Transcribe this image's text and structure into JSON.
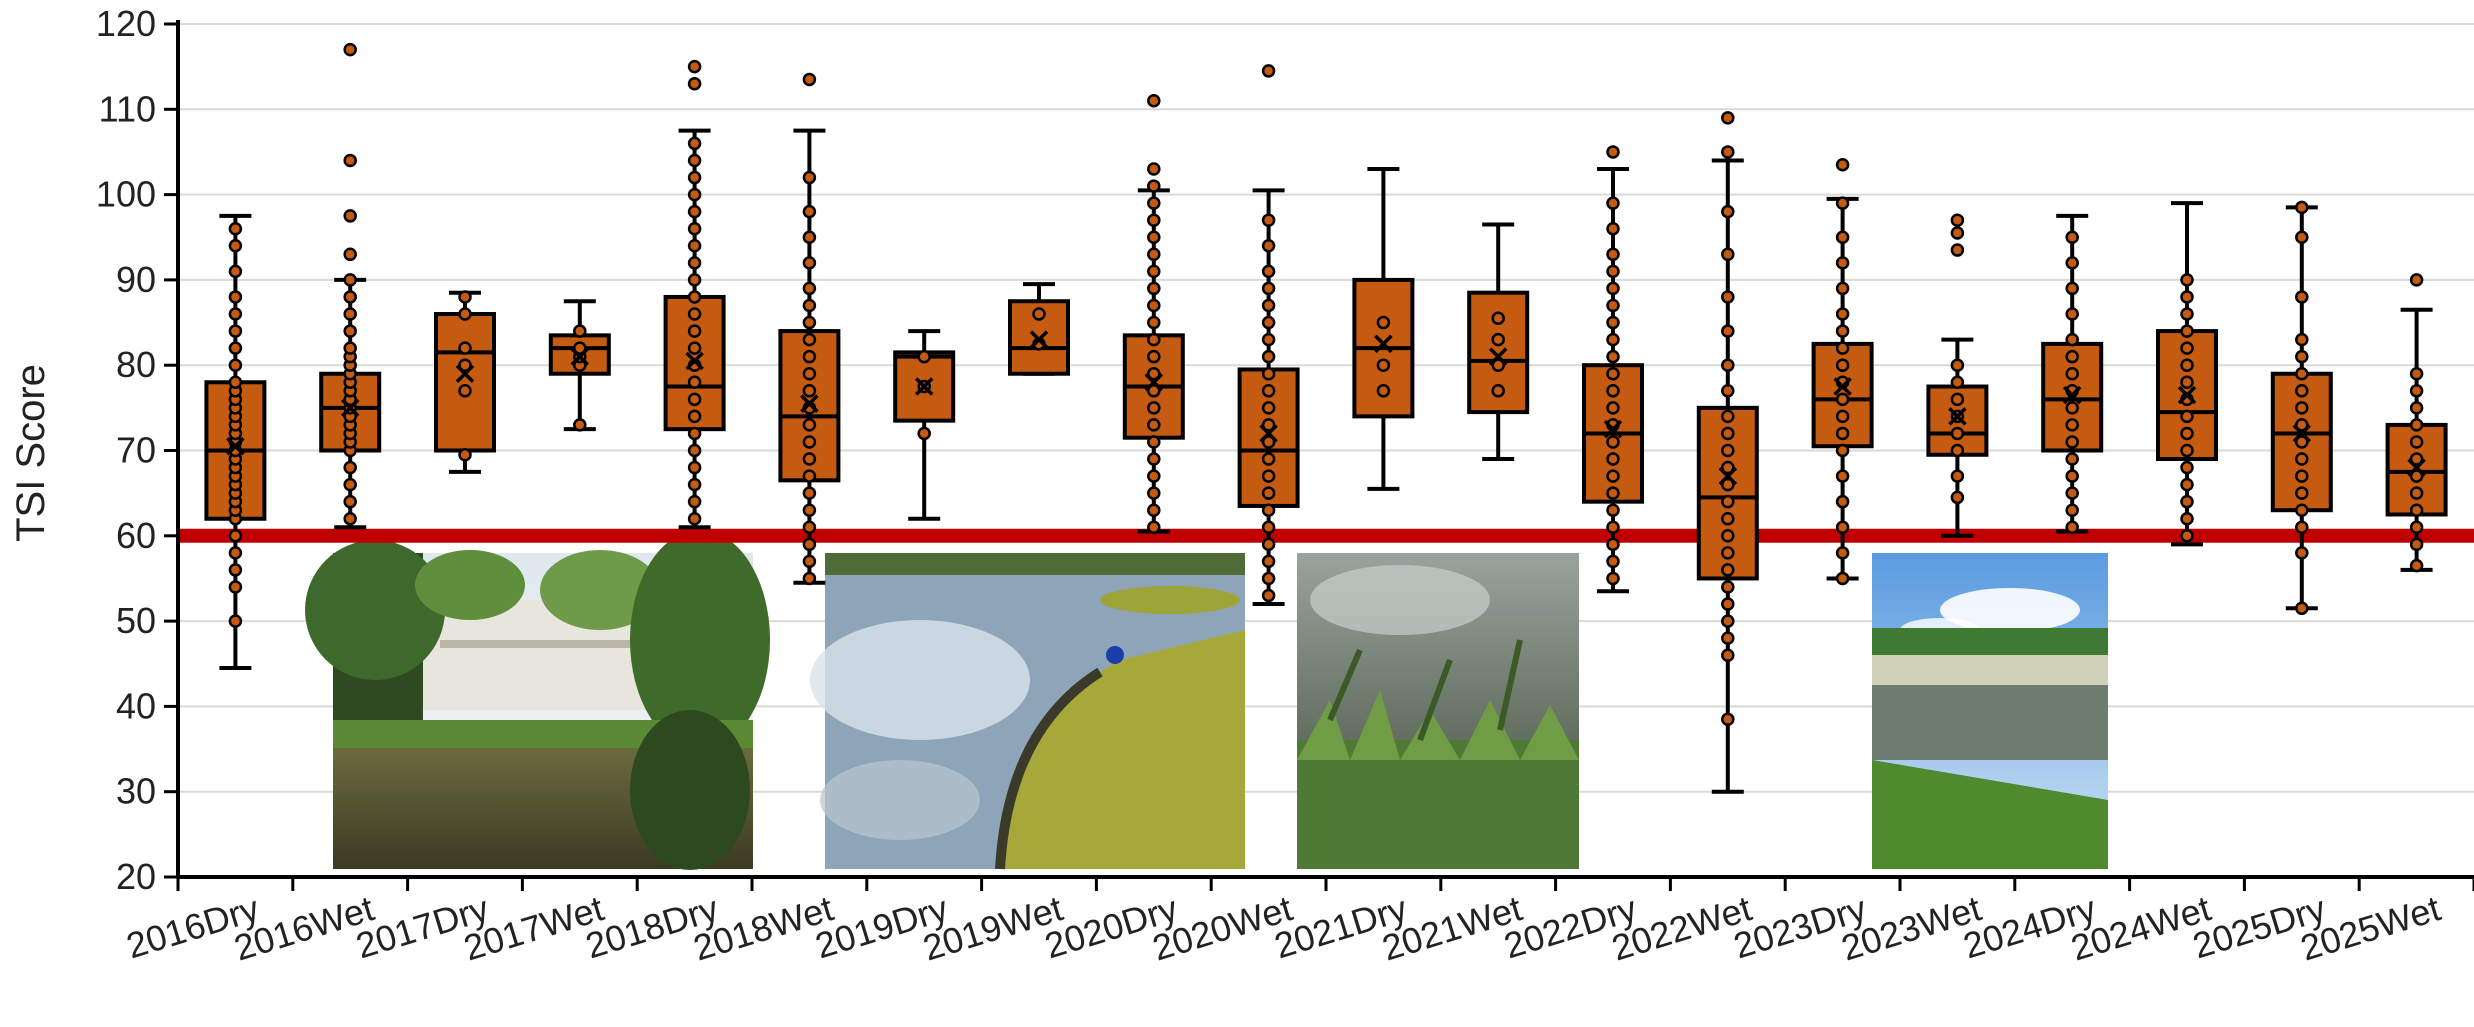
{
  "chart_data": {
    "type": "box",
    "ylabel": "TSI Score",
    "xlabel": "",
    "ylim": [
      20,
      120
    ],
    "yticks": [
      20,
      30,
      40,
      50,
      60,
      70,
      80,
      90,
      100,
      110,
      120
    ],
    "grid": "horizontal",
    "threshold": 60,
    "colors": {
      "box": "#c55a11",
      "outline": "#000000",
      "threshold": "#c00000",
      "grid": "#d9d9d9"
    },
    "categories": [
      "2016Dry",
      "2016Wet",
      "2017Dry",
      "2017Wet",
      "2018Dry",
      "2018Wet",
      "2019Dry",
      "2019Wet",
      "2020Dry",
      "2020Wet",
      "2021Dry",
      "2021Wet",
      "2022Dry",
      "2022Wet",
      "2023Dry",
      "2023Wet",
      "2024Dry",
      "2024Wet",
      "2025Dry",
      "2025Wet"
    ],
    "boxes": [
      {
        "min": 44.5,
        "q1": 62,
        "median": 70,
        "q3": 78,
        "max": 97.5,
        "mean": 70.5,
        "points": [
          50,
          54,
          56,
          58,
          60,
          62,
          63,
          64,
          65,
          66,
          67,
          68,
          69,
          70,
          71,
          72,
          73,
          74,
          75,
          76,
          77,
          78,
          80,
          82,
          84,
          86,
          88,
          91,
          94,
          96
        ]
      },
      {
        "min": 61,
        "q1": 70,
        "median": 75,
        "q3": 79,
        "max": 90,
        "mean": 75,
        "points": [
          62,
          64,
          66,
          68,
          70,
          71,
          72,
          73,
          74,
          75,
          76,
          77,
          78,
          79,
          80,
          81,
          82,
          84,
          86,
          88,
          90,
          93,
          97.5,
          104,
          117
        ]
      },
      {
        "min": 67.5,
        "q1": 70,
        "median": 81.5,
        "q3": 86,
        "max": 88.5,
        "mean": 79,
        "points": [
          69.5,
          77,
          80,
          82,
          86,
          88
        ]
      },
      {
        "min": 72.5,
        "q1": 79,
        "median": 82,
        "q3": 83.5,
        "max": 87.5,
        "mean": 81,
        "points": [
          73,
          80,
          81,
          82,
          84
        ]
      },
      {
        "min": 61,
        "q1": 72.5,
        "median": 77.5,
        "q3": 88,
        "max": 107.5,
        "mean": 80.5,
        "points": [
          62,
          64,
          66,
          68,
          70,
          72,
          74,
          76,
          78,
          80,
          82,
          84,
          86,
          88,
          90,
          92,
          94,
          96,
          98,
          100,
          102,
          104,
          106,
          113,
          115
        ]
      },
      {
        "min": 54.5,
        "q1": 66.5,
        "median": 74,
        "q3": 84,
        "max": 107.5,
        "mean": 75.5,
        "points": [
          55,
          57,
          59,
          61,
          63,
          65,
          67,
          69,
          71,
          73,
          75,
          77,
          79,
          81,
          83,
          85,
          87,
          89,
          92,
          95,
          98,
          102,
          113.5
        ]
      },
      {
        "min": 62,
        "q1": 73.5,
        "median": 81,
        "q3": 81.5,
        "max": 84,
        "mean": 77.5,
        "points": [
          72,
          77.5,
          81
        ]
      },
      {
        "min": 79,
        "q1": 79,
        "median": 82,
        "q3": 87.5,
        "max": 89.5,
        "mean": 83,
        "points": [
          82.5,
          86
        ]
      },
      {
        "min": 60.5,
        "q1": 71.5,
        "median": 77.5,
        "q3": 83.5,
        "max": 100.5,
        "mean": 78,
        "points": [
          61,
          63,
          65,
          67,
          69,
          71,
          73,
          75,
          77,
          79,
          81,
          83,
          85,
          87,
          89,
          91,
          93,
          95,
          97,
          99,
          101,
          103,
          111
        ]
      },
      {
        "min": 52,
        "q1": 63.5,
        "median": 70,
        "q3": 79.5,
        "max": 100.5,
        "mean": 72,
        "points": [
          53,
          55,
          57,
          59,
          61,
          63,
          65,
          67,
          69,
          71,
          73,
          75,
          77,
          79,
          81,
          83,
          85,
          87,
          89,
          91,
          94,
          97,
          114.5
        ]
      },
      {
        "min": 65.5,
        "q1": 74,
        "median": 82,
        "q3": 90,
        "max": 103,
        "mean": 82.5,
        "points": [
          77,
          80,
          85
        ]
      },
      {
        "min": 69,
        "q1": 74.5,
        "median": 80.5,
        "q3": 88.5,
        "max": 96.5,
        "mean": 81,
        "points": [
          77,
          80,
          83,
          85.5
        ]
      },
      {
        "min": 53.5,
        "q1": 64,
        "median": 72,
        "q3": 80,
        "max": 103,
        "mean": 72.5,
        "points": [
          55,
          57,
          59,
          61,
          63,
          65,
          67,
          69,
          71,
          73,
          75,
          77,
          79,
          81,
          83,
          85,
          87,
          89,
          91,
          93,
          96,
          99,
          105
        ]
      },
      {
        "min": 30,
        "q1": 55,
        "median": 64.5,
        "q3": 75,
        "max": 104,
        "mean": 67,
        "points": [
          38.5,
          46,
          48,
          50,
          52,
          54,
          56,
          58,
          60,
          62,
          64,
          66,
          68,
          70,
          72,
          74,
          77,
          80,
          84,
          88,
          93,
          98,
          105,
          109
        ]
      },
      {
        "min": 55,
        "q1": 70.5,
        "median": 76,
        "q3": 82.5,
        "max": 99.5,
        "mean": 77.5,
        "points": [
          55,
          58,
          61,
          64,
          67,
          70,
          72,
          74,
          76,
          78,
          80,
          82,
          84,
          86,
          89,
          92,
          95,
          99,
          103.5
        ]
      },
      {
        "min": 60,
        "q1": 69.5,
        "median": 72,
        "q3": 77.5,
        "max": 83,
        "mean": 74,
        "points": [
          64.5,
          67,
          70,
          72,
          74,
          76,
          78,
          80,
          93.5,
          95.5,
          97
        ]
      },
      {
        "min": 60.5,
        "q1": 70,
        "median": 76,
        "q3": 82.5,
        "max": 97.5,
        "mean": 76.5,
        "points": [
          61,
          63,
          65,
          67,
          69,
          71,
          73,
          75,
          77,
          79,
          81,
          83,
          86,
          89,
          92,
          95
        ]
      },
      {
        "min": 59,
        "q1": 69,
        "median": 74.5,
        "q3": 84,
        "max": 99,
        "mean": 76.5,
        "points": [
          60,
          62,
          64,
          66,
          68,
          70,
          72,
          74,
          76,
          78,
          80,
          82,
          84,
          86,
          88,
          90
        ]
      },
      {
        "min": 51.5,
        "q1": 63,
        "median": 72,
        "q3": 79,
        "max": 98.5,
        "mean": 72,
        "points": [
          51.5,
          58,
          61,
          63,
          65,
          67,
          69,
          71,
          73,
          75,
          77,
          79,
          81,
          83,
          88,
          95,
          98.5
        ]
      },
      {
        "min": 56,
        "q1": 62.5,
        "median": 67.5,
        "q3": 73,
        "max": 86.5,
        "mean": 68,
        "points": [
          56.5,
          59,
          61,
          63,
          65,
          67,
          69,
          71,
          73,
          75,
          77,
          79,
          90
        ]
      }
    ]
  }
}
